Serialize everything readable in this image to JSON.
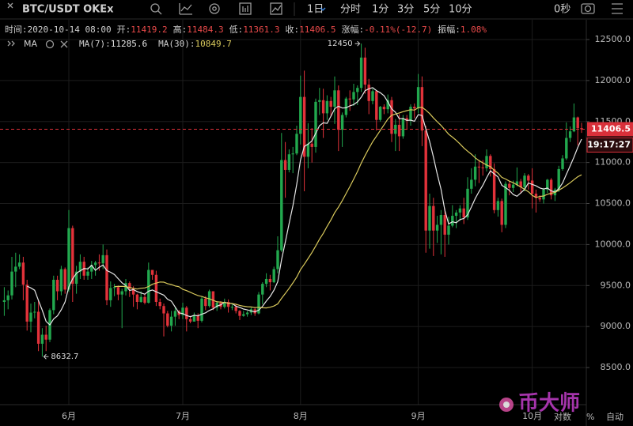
{
  "ui": {
    "symbol": "BTC/USDT OKEx",
    "intervals": [
      "1日",
      "分时",
      "1分",
      "3分",
      "5分",
      "10分"
    ],
    "timer": "0秒",
    "info": {
      "time_label": "时间:",
      "time": "2020-10-14 08:00",
      "open_label": "开:",
      "high_label": "高:",
      "low_label": "低:",
      "close_label": "收:",
      "change_label": "涨幅:",
      "change": "-0.11%(-12.7)",
      "amplitude_label": "振幅:",
      "amplitude": "1.08%"
    },
    "indicator": "MA",
    "countdown": "19:17:27",
    "scale_options": [
      "对数",
      "%",
      "自动"
    ],
    "watermark": "币大师"
  },
  "chart_data": {
    "type": "candlestick",
    "categories": [
      null,
      null,
      null,
      null,
      null,
      null,
      null,
      null,
      null,
      null,
      null,
      null,
      null,
      null,
      null,
      null,
      null,
      "6月",
      null,
      null,
      null,
      null,
      null,
      null,
      null,
      null,
      null,
      null,
      null,
      null,
      null,
      null,
      null,
      null,
      null,
      null,
      null,
      null,
      null,
      null,
      null,
      null,
      null,
      null,
      null,
      null,
      null,
      "7月",
      null,
      null,
      null,
      null,
      null,
      null,
      null,
      null,
      null,
      null,
      null,
      null,
      null,
      null,
      null,
      null,
      null,
      null,
      null,
      null,
      null,
      null,
      null,
      null,
      null,
      null,
      null,
      null,
      null,
      null,
      "8月",
      null,
      null,
      null,
      null,
      null,
      null,
      null,
      null,
      null,
      null,
      null,
      null,
      null,
      null,
      null,
      null,
      null,
      null,
      null,
      null,
      null,
      null,
      null,
      null,
      null,
      null,
      null,
      null,
      null,
      null,
      "9月",
      null,
      null,
      null,
      null,
      null,
      null,
      null,
      null,
      null,
      null,
      null,
      null,
      null,
      null,
      null,
      null,
      null,
      null,
      null,
      null,
      null,
      null,
      null,
      null,
      null,
      null,
      null,
      null,
      null,
      "10月",
      null,
      null,
      null,
      null,
      null,
      null,
      null,
      null,
      null,
      null,
      null,
      null,
      null
    ],
    "open": [
      9300,
      9320,
      9380,
      9670,
      9730,
      9780,
      9510,
      9060,
      9170,
      9180,
      8790,
      8900,
      8840,
      9200,
      9570,
      9430,
      9700,
      9450,
      10200,
      9520,
      9670,
      9790,
      9620,
      9670,
      9750,
      9780,
      9770,
      9870,
      9320,
      9470,
      9480,
      9390,
      9430,
      9530,
      9460,
      9390,
      9300,
      9360,
      9290,
      9690,
      9630,
      9300,
      9250,
      9160,
      9010,
      9120,
      9190,
      9140,
      9230,
      9090,
      9060,
      9130,
      9070,
      9340,
      9250,
      9430,
      9230,
      9290,
      9240,
      9300,
      9240,
      9240,
      9190,
      9130,
      9150,
      9170,
      9210,
      9160,
      9390,
      9520,
      9580,
      9540,
      9700,
      9930,
      11030,
      10910,
      11100,
      11110,
      11350,
      11800,
      11070,
      11230,
      11190,
      11740,
      11760,
      11600,
      11750,
      11680,
      11880,
      11400,
      11580,
      11780,
      11770,
      11860,
      11910,
      12280,
      11950,
      11750,
      11870,
      11520,
      11680,
      11650,
      11760,
      11350,
      11460,
      11320,
      11540,
      11510,
      11680,
      11660,
      11920,
      11390,
      10170,
      10470,
      10170,
      10240,
      10360,
      10120,
      10230,
      10350,
      10390,
      10440,
      10330,
      10680,
      10790,
      10950,
      10940,
      10930,
      11080,
      10920,
      10420,
      10530,
      10240,
      10740,
      10690,
      10730,
      10770,
      10700,
      10840,
      10780,
      10620,
      10570,
      10550,
      10670,
      10790,
      10600,
      10670,
      10920,
      11050,
      11300,
      11380,
      11550,
      11419.2
    ],
    "high": [
      9480,
      9440,
      9850,
      9900,
      9880,
      9850,
      9570,
      9280,
      9300,
      9310,
      8980,
      9010,
      9220,
      9620,
      9620,
      9740,
      9720,
      10420,
      10230,
      9740,
      9880,
      9850,
      9720,
      9800,
      9800,
      9880,
      10000,
      9940,
      9550,
      9520,
      9500,
      9460,
      9580,
      9550,
      9490,
      9400,
      9430,
      9400,
      9780,
      9690,
      9680,
      9340,
      9280,
      9190,
      9190,
      9230,
      9200,
      9290,
      9250,
      9130,
      9170,
      9160,
      9370,
      9370,
      9450,
      9430,
      9310,
      9310,
      9340,
      9330,
      9270,
      9270,
      9200,
      9190,
      9190,
      9230,
      9230,
      9420,
      9540,
      9650,
      9630,
      9730,
      10100,
      11360,
      11250,
      11160,
      11190,
      11450,
      12060,
      12120,
      11480,
      11420,
      11780,
      11910,
      11900,
      11820,
      11800,
      12050,
      11940,
      11610,
      11800,
      11880,
      11960,
      11940,
      12450,
      12400,
      12020,
      11900,
      11880,
      11690,
      11710,
      11830,
      11800,
      11530,
      11590,
      11580,
      11580,
      11710,
      11720,
      12080,
      12050,
      11450,
      10620,
      10570,
      10350,
      10420,
      10440,
      10340,
      10480,
      10420,
      10480,
      10570,
      10820,
      10930,
      11100,
      11030,
      11030,
      11160,
      11100,
      10990,
      10570,
      10560,
      10770,
      10780,
      10780,
      10940,
      10800,
      10870,
      10860,
      10930,
      10670,
      10600,
      10690,
      10800,
      10810,
      10690,
      10960,
      11090,
      11490,
      11440,
      11720,
      11560,
      11484.3
    ],
    "low": [
      9130,
      9210,
      9330,
      9480,
      9700,
      9320,
      8950,
      8930,
      9100,
      8700,
      8632.7,
      8700,
      8810,
      9150,
      9320,
      9380,
      9400,
      9420,
      9300,
      9400,
      9580,
      9570,
      9570,
      9580,
      9620,
      9680,
      9700,
      9260,
      9240,
      9370,
      9320,
      8980,
      9380,
      9360,
      9240,
      9210,
      9290,
      9270,
      9280,
      9570,
      9250,
      9210,
      8880,
      8990,
      8940,
      9010,
      9090,
      9090,
      8940,
      9040,
      9060,
      8980,
      9050,
      9200,
      9230,
      9200,
      9190,
      9210,
      9220,
      9170,
      9200,
      9160,
      9080,
      9120,
      9120,
      9140,
      9130,
      9150,
      9270,
      9480,
      9440,
      9530,
      9650,
      9910,
      10570,
      10880,
      10870,
      11090,
      11220,
      10650,
      10930,
      11000,
      11120,
      11580,
      11300,
      11520,
      11560,
      11470,
      11140,
      11190,
      11550,
      11630,
      11690,
      11700,
      11860,
      11840,
      11590,
      11710,
      11390,
      11500,
      11590,
      11600,
      11250,
      11140,
      11140,
      11290,
      11400,
      11450,
      11540,
      11600,
      11200,
      9900,
      9950,
      9860,
      10020,
      9880,
      9850,
      10000,
      10210,
      10200,
      10290,
      10250,
      10300,
      10620,
      10710,
      10750,
      10840,
      10890,
      10830,
      10380,
      10340,
      10150,
      10200,
      10600,
      10640,
      10710,
      10620,
      10650,
      10670,
      10440,
      10390,
      10520,
      10500,
      10630,
      10550,
      10530,
      10640,
      10900,
      11030,
      11250,
      11370,
      11210,
      11361.3
    ],
    "close": [
      9320,
      9380,
      9670,
      9730,
      9780,
      9510,
      9060,
      9170,
      9180,
      8790,
      8900,
      8840,
      9200,
      9570,
      9430,
      9700,
      9450,
      10200,
      9520,
      9670,
      9790,
      9620,
      9670,
      9750,
      9780,
      9770,
      9870,
      9320,
      9470,
      9480,
      9390,
      9430,
      9530,
      9460,
      9390,
      9300,
      9360,
      9290,
      9690,
      9630,
      9300,
      9250,
      9160,
      9010,
      9120,
      9190,
      9140,
      9230,
      9090,
      9060,
      9130,
      9070,
      9340,
      9250,
      9430,
      9230,
      9290,
      9240,
      9300,
      9240,
      9240,
      9190,
      9130,
      9150,
      9170,
      9210,
      9160,
      9390,
      9520,
      9580,
      9540,
      9700,
      9930,
      11030,
      10910,
      11100,
      11110,
      11350,
      11800,
      11070,
      11230,
      11190,
      11740,
      11760,
      11600,
      11750,
      11680,
      11880,
      11400,
      11580,
      11780,
      11770,
      11860,
      11910,
      12280,
      11950,
      11750,
      11870,
      11520,
      11680,
      11650,
      11760,
      11350,
      11460,
      11320,
      11540,
      11510,
      11680,
      11660,
      11920,
      11390,
      10170,
      10470,
      10170,
      10240,
      10360,
      10120,
      10230,
      10350,
      10390,
      10440,
      10330,
      10680,
      10790,
      10950,
      10940,
      10930,
      11080,
      10920,
      10420,
      10530,
      10240,
      10740,
      10690,
      10730,
      10770,
      10700,
      10840,
      10780,
      10620,
      10570,
      10550,
      10670,
      10790,
      10600,
      10670,
      10920,
      11050,
      11300,
      11380,
      11550,
      11419.2,
      11406.5
    ],
    "up_color": "#22a84e",
    "down_color": "#e2323a",
    "series": [
      {
        "name": "MA(7):",
        "color": "#e6e6e6",
        "values": [
          null,
          null,
          null,
          null,
          null,
          null,
          9493,
          9471,
          9443,
          9317,
          9199,
          9064,
          9020,
          9093,
          9130,
          9204,
          9299,
          9484,
          9581,
          9649,
          9680,
          9707,
          9703,
          9746,
          9686,
          9721,
          9750,
          9683,
          9661,
          9634,
          9583,
          9533,
          9499,
          9440,
          9450,
          9426,
          9409,
          9394,
          9431,
          9446,
          9423,
          9403,
          9383,
          9333,
          9309,
          9237,
          9167,
          9157,
          9134,
          9120,
          9137,
          9130,
          9151,
          9167,
          9196,
          9216,
          9249,
          9264,
          9297,
          9283,
          9281,
          9247,
          9233,
          9213,
          9203,
          9190,
          9179,
          9200,
          9247,
          9311,
          9367,
          9443,
          9546,
          9813,
          10030,
          10256,
          10474,
          10733,
          11033,
          11196,
          11224,
          11264,
          11356,
          11449,
          11484,
          11477,
          11564,
          11657,
          11687,
          11664,
          11667,
          11691,
          11707,
          11740,
          11797,
          11876,
          11900,
          11913,
          11877,
          11851,
          11814,
          11740,
          11654,
          11613,
          11534,
          11537,
          11513,
          11517,
          11503,
          11584,
          11574,
          11410,
          11257,
          11066,
          10860,
          10674,
          10417,
          10251,
          10277,
          10266,
          10304,
          10317,
          10363,
          10459,
          10561,
          10646,
          10723,
          10814,
          10899,
          10861,
          10824,
          10723,
          10694,
          10660,
          10610,
          10589,
          10629,
          10673,
          10750,
          10733,
          10716,
          10690,
          10676,
          10689,
          10654,
          10639,
          10681,
          10750,
          10857,
          10959,
          11067,
          11184,
          11285.6
        ]
      },
      {
        "name": "MA(30):",
        "color": "#d9c95c",
        "values": [
          null,
          null,
          null,
          null,
          null,
          null,
          null,
          null,
          null,
          null,
          null,
          null,
          null,
          null,
          null,
          null,
          null,
          null,
          null,
          null,
          null,
          null,
          null,
          null,
          null,
          null,
          null,
          null,
          null,
          9486,
          9489,
          9490,
          9486,
          9477,
          9464,
          9457,
          9467,
          9471,
          9488,
          9516,
          9529,
          9543,
          9541,
          9523,
          9512,
          9495,
          9485,
          9453,
          9438,
          9418,
          9396,
          9378,
          9367,
          9350,
          9338,
          9320,
          9301,
          9298,
          9293,
          9285,
          9280,
          9272,
          9258,
          9248,
          9241,
          9238,
          9231,
          9234,
          9229,
          9227,
          9235,
          9250,
          9276,
          9343,
          9403,
          9466,
          9532,
          9603,
          9693,
          9760,
          9830,
          9901,
          9981,
          10064,
          10137,
          10221,
          10300,
          10388,
          10458,
          10536,
          10621,
          10707,
          10798,
          10890,
          10994,
          11085,
          11171,
          11254,
          11321,
          11391,
          11461,
          11530,
          11577,
          11591,
          11605,
          11620,
          11633,
          11644,
          11639,
          11668,
          11673,
          11639,
          11597,
          11544,
          11498,
          11452,
          11400,
          11345,
          11310,
          11270,
          11226,
          11178,
          11138,
          11101,
          11057,
          11023,
          10996,
          10969,
          10949,
          10907,
          10870,
          10819,
          10799,
          10773,
          10754,
          10728,
          10701,
          10673,
          10644,
          10600,
          10573,
          10586,
          10592,
          10613,
          10625,
          10635,
          10662,
          10689,
          10721,
          10754,
          10791,
          10827,
          10849.7
        ]
      }
    ],
    "ylim": [
      8047,
      12741
    ],
    "yticks": [
      {
        "value": 8500,
        "label": "8500.0"
      },
      {
        "value": 9000,
        "label": "9000.0"
      },
      {
        "value": 9500,
        "label": "9500.0"
      },
      {
        "value": 10000,
        "label": "10000.0"
      },
      {
        "value": 10500,
        "label": "10500.0"
      },
      {
        "value": 11000,
        "label": "11000.0"
      },
      {
        "value": 11500,
        "label": "11500.0"
      },
      {
        "value": 12000,
        "label": "12000.0"
      },
      {
        "value": 12500,
        "label": "12500.0"
      }
    ],
    "grid": true,
    "last_price_line": true
  }
}
